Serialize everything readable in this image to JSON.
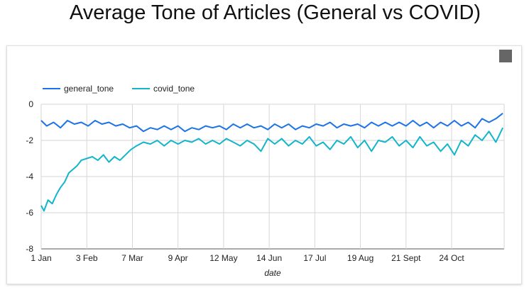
{
  "chart_data": {
    "type": "line",
    "title": "Average Tone of Articles (General vs COVID)",
    "xlabel": "date",
    "ylabel": "",
    "ylim": [
      -8,
      0
    ],
    "xlim": [
      "2020-01-01",
      "2020-12-01"
    ],
    "yticks": [
      "0",
      "-2",
      "-4",
      "-6",
      "-8"
    ],
    "xticks": [
      {
        "label": "1 Jan",
        "date": "2020-01-01"
      },
      {
        "label": "3 Feb",
        "date": "2020-02-03"
      },
      {
        "label": "7 Mar",
        "date": "2020-03-07"
      },
      {
        "label": "9 Apr",
        "date": "2020-04-09"
      },
      {
        "label": "12 May",
        "date": "2020-05-12"
      },
      {
        "label": "14 Jun",
        "date": "2020-06-14"
      },
      {
        "label": "17 Jul",
        "date": "2020-07-17"
      },
      {
        "label": "19 Aug",
        "date": "2020-08-19"
      },
      {
        "label": "21 Sept",
        "date": "2020-09-21"
      },
      {
        "label": "24 Oct",
        "date": "2020-10-24"
      }
    ],
    "grid": true,
    "legend": "top-left",
    "series": [
      {
        "name": "general_tone",
        "color": "#1a73e8",
        "x": [
          "2020-01-01",
          "2020-01-05",
          "2020-01-10",
          "2020-01-15",
          "2020-01-20",
          "2020-01-25",
          "2020-01-30",
          "2020-02-04",
          "2020-02-09",
          "2020-02-14",
          "2020-02-19",
          "2020-02-24",
          "2020-02-29",
          "2020-03-05",
          "2020-03-10",
          "2020-03-15",
          "2020-03-20",
          "2020-03-25",
          "2020-03-30",
          "2020-04-04",
          "2020-04-09",
          "2020-04-14",
          "2020-04-19",
          "2020-04-24",
          "2020-04-29",
          "2020-05-04",
          "2020-05-09",
          "2020-05-14",
          "2020-05-19",
          "2020-05-24",
          "2020-05-29",
          "2020-06-03",
          "2020-06-08",
          "2020-06-13",
          "2020-06-18",
          "2020-06-23",
          "2020-06-28",
          "2020-07-03",
          "2020-07-08",
          "2020-07-13",
          "2020-07-18",
          "2020-07-23",
          "2020-07-28",
          "2020-08-02",
          "2020-08-07",
          "2020-08-12",
          "2020-08-17",
          "2020-08-22",
          "2020-08-27",
          "2020-09-01",
          "2020-09-06",
          "2020-09-11",
          "2020-09-16",
          "2020-09-21",
          "2020-09-26",
          "2020-10-01",
          "2020-10-06",
          "2020-10-11",
          "2020-10-16",
          "2020-10-21",
          "2020-10-26",
          "2020-10-31",
          "2020-11-05",
          "2020-11-10",
          "2020-11-15",
          "2020-11-20",
          "2020-11-25",
          "2020-11-30"
        ],
        "y": [
          -0.9,
          -1.2,
          -1.0,
          -1.3,
          -0.9,
          -1.1,
          -1.0,
          -1.2,
          -0.9,
          -1.1,
          -1.0,
          -1.2,
          -1.1,
          -1.3,
          -1.2,
          -1.5,
          -1.3,
          -1.4,
          -1.2,
          -1.4,
          -1.2,
          -1.5,
          -1.3,
          -1.4,
          -1.2,
          -1.3,
          -1.2,
          -1.4,
          -1.1,
          -1.3,
          -1.1,
          -1.3,
          -1.2,
          -1.4,
          -1.1,
          -1.3,
          -1.1,
          -1.4,
          -1.2,
          -1.3,
          -1.1,
          -1.2,
          -1.0,
          -1.3,
          -1.1,
          -1.2,
          -1.1,
          -1.3,
          -1.0,
          -1.2,
          -1.0,
          -1.2,
          -1.0,
          -1.2,
          -0.9,
          -1.2,
          -1.0,
          -1.3,
          -1.0,
          -1.2,
          -0.9,
          -1.2,
          -1.0,
          -1.3,
          -0.8,
          -1.0,
          -0.8,
          -0.5
        ]
      },
      {
        "name": "covid_tone",
        "color": "#12b5cb",
        "x": [
          "2020-01-01",
          "2020-01-03",
          "2020-01-06",
          "2020-01-09",
          "2020-01-12",
          "2020-01-15",
          "2020-01-18",
          "2020-01-21",
          "2020-01-24",
          "2020-01-27",
          "2020-01-30",
          "2020-02-03",
          "2020-02-07",
          "2020-02-11",
          "2020-02-15",
          "2020-02-19",
          "2020-02-23",
          "2020-02-27",
          "2020-03-02",
          "2020-03-06",
          "2020-03-10",
          "2020-03-15",
          "2020-03-20",
          "2020-03-25",
          "2020-03-30",
          "2020-04-04",
          "2020-04-09",
          "2020-04-14",
          "2020-04-19",
          "2020-04-24",
          "2020-04-29",
          "2020-05-04",
          "2020-05-09",
          "2020-05-14",
          "2020-05-19",
          "2020-05-24",
          "2020-05-29",
          "2020-06-03",
          "2020-06-08",
          "2020-06-13",
          "2020-06-18",
          "2020-06-23",
          "2020-06-28",
          "2020-07-03",
          "2020-07-08",
          "2020-07-13",
          "2020-07-18",
          "2020-07-23",
          "2020-07-28",
          "2020-08-02",
          "2020-08-07",
          "2020-08-12",
          "2020-08-17",
          "2020-08-22",
          "2020-08-27",
          "2020-09-01",
          "2020-09-06",
          "2020-09-11",
          "2020-09-16",
          "2020-09-21",
          "2020-09-26",
          "2020-10-01",
          "2020-10-06",
          "2020-10-11",
          "2020-10-16",
          "2020-10-21",
          "2020-10-26",
          "2020-10-31",
          "2020-11-05",
          "2020-11-10",
          "2020-11-15",
          "2020-11-20",
          "2020-11-25",
          "2020-11-30"
        ],
        "y": [
          -5.6,
          -5.9,
          -5.3,
          -5.5,
          -5.0,
          -4.6,
          -4.3,
          -3.8,
          -3.6,
          -3.4,
          -3.1,
          -3.0,
          -2.9,
          -3.1,
          -2.8,
          -3.2,
          -2.9,
          -3.1,
          -2.8,
          -2.5,
          -2.3,
          -2.1,
          -2.2,
          -2.0,
          -2.3,
          -2.0,
          -2.2,
          -2.0,
          -2.1,
          -1.9,
          -2.2,
          -2.0,
          -2.2,
          -1.9,
          -2.1,
          -2.3,
          -2.0,
          -2.2,
          -2.6,
          -1.9,
          -2.2,
          -1.9,
          -2.3,
          -2.0,
          -2.2,
          -1.8,
          -2.3,
          -2.1,
          -2.5,
          -2.0,
          -2.2,
          -1.8,
          -2.4,
          -2.0,
          -2.6,
          -2.0,
          -2.1,
          -1.8,
          -2.3,
          -2.0,
          -2.4,
          -1.8,
          -2.3,
          -2.1,
          -2.6,
          -2.2,
          -2.8,
          -2.0,
          -2.3,
          -1.7,
          -2.0,
          -1.5,
          -2.1,
          -1.3
        ]
      }
    ]
  }
}
